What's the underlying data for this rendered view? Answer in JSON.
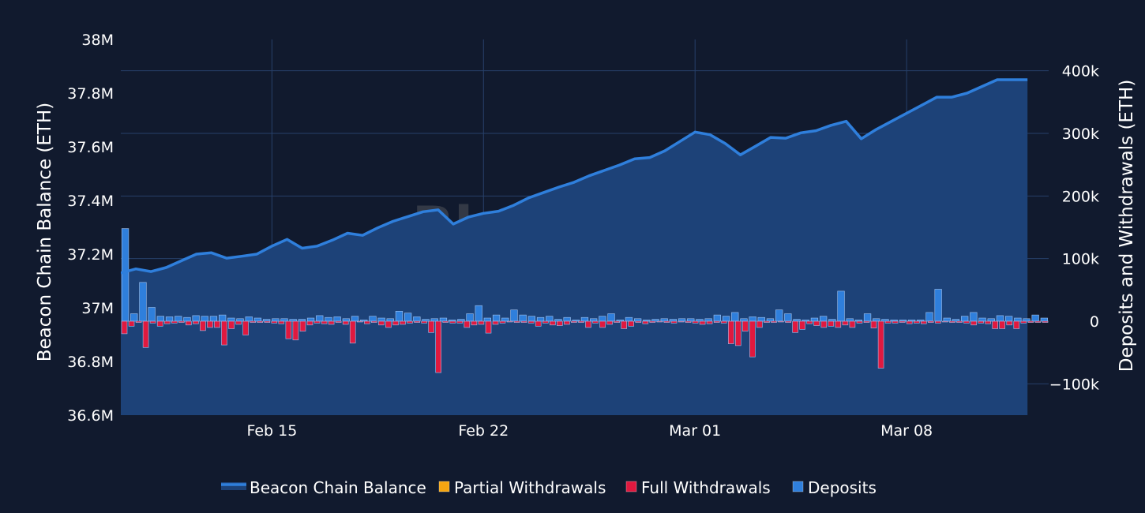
{
  "watermark": "BlockScholes",
  "colors": {
    "background": "#111a2e",
    "area_fill": "#1d4278",
    "line": "#2f7fdc",
    "deposits": "#2f7fdc",
    "full_withdrawals": "#e0193f",
    "partial_withdrawals": "#f5a511",
    "grid": "#27406a"
  },
  "legend": [
    {
      "key": "balance",
      "label": "Beacon Chain Balance",
      "color": "#2f7fdc",
      "icon": "line-swatch-icon"
    },
    {
      "key": "partial",
      "label": "Partial Withdrawals",
      "color": "#f5a511",
      "icon": "square-swatch-icon"
    },
    {
      "key": "full",
      "label": "Full Withdrawals",
      "color": "#e0193f",
      "icon": "square-swatch-icon"
    },
    {
      "key": "deposits",
      "label": "Deposits",
      "color": "#2f7fdc",
      "icon": "square-swatch-icon"
    }
  ],
  "chart_data": {
    "type": "line+bar",
    "x_start": "Feb 10",
    "x_end": "Mar 15",
    "xlabel": "",
    "ylabel_left": "Beacon Chain Balance (ETH)",
    "ylabel_right": "Deposits and Withdrawals (ETH)",
    "y_left_range": [
      36600000,
      38000000
    ],
    "y_left_ticks": [
      36600000,
      36800000,
      37000000,
      37200000,
      37400000,
      37600000,
      37800000,
      38000000
    ],
    "y_left_tick_labels": [
      "36.6M",
      "36.8M",
      "37M",
      "37.2M",
      "37.4M",
      "37.6M",
      "37.8M",
      "38M"
    ],
    "y_right_range": [
      -150000,
      450000
    ],
    "y_right_ticks": [
      -100000,
      0,
      100000,
      200000,
      300000,
      400000
    ],
    "y_right_tick_labels": [
      "−100k",
      "0",
      "100k",
      "200k",
      "300k",
      "400k"
    ],
    "x_tick_positions": [
      5,
      12,
      19,
      26
    ],
    "x_tick_labels": [
      "Feb 15",
      "Feb 22",
      "Mar 01",
      "Mar 08"
    ],
    "series": [
      {
        "name": "Beacon Chain Balance",
        "type": "line",
        "axis": "left",
        "x": [
          0,
          0.5,
          1,
          1.5,
          2,
          2.5,
          3,
          3.5,
          4,
          4.5,
          5,
          5.5,
          6,
          6.5,
          7,
          7.5,
          8,
          8.5,
          9,
          9.5,
          10,
          10.5,
          11,
          11.5,
          12,
          12.5,
          13,
          13.5,
          14,
          14.5,
          15,
          15.5,
          16,
          16.5,
          17,
          17.5,
          18,
          18.5,
          19,
          19.5,
          20,
          20.5,
          21,
          21.5,
          22,
          22.5,
          23,
          23.5,
          24,
          24.5,
          25,
          25.5,
          26,
          26.5,
          27,
          27.5,
          28,
          28.5,
          29,
          29.5,
          30
        ],
        "values": [
          37130000,
          37145000,
          37135000,
          37150000,
          37175000,
          37200000,
          37205000,
          37185000,
          37192000,
          37200000,
          37230000,
          37255000,
          37222000,
          37230000,
          37252000,
          37278000,
          37270000,
          37298000,
          37322000,
          37340000,
          37358000,
          37365000,
          37312000,
          37338000,
          37352000,
          37360000,
          37382000,
          37410000,
          37430000,
          37450000,
          37468000,
          37492000,
          37512000,
          37532000,
          37555000,
          37560000,
          37585000,
          37620000,
          37655000,
          37645000,
          37612000,
          37570000,
          37602000,
          37635000,
          37632000,
          37652000,
          37660000,
          37680000,
          37695000,
          37630000,
          37665000,
          37695000,
          37725000,
          37755000,
          37785000,
          37785000,
          37800000,
          37825000,
          37850000,
          37850000,
          37850000
        ]
      },
      {
        "name": "Deposits",
        "type": "bar",
        "axis": "right",
        "values": [
          148000,
          12000,
          62000,
          22000,
          8000,
          7000,
          8000,
          6000,
          9000,
          8000,
          8000,
          10000,
          5000,
          4000,
          7000,
          5000,
          3000,
          4000,
          4000,
          3000,
          3000,
          5000,
          9000,
          6000,
          7000,
          4000,
          8000,
          2000,
          8000,
          5000,
          4000,
          16000,
          13000,
          7000,
          3000,
          4000,
          5000,
          2000,
          3000,
          12000,
          25000,
          5000,
          10000,
          5000,
          18000,
          10000,
          8000,
          6000,
          8000,
          3000,
          6000,
          2000,
          6000,
          4000,
          8000,
          12000,
          2000,
          6000,
          4000,
          2000,
          3000,
          4000,
          3000,
          4000,
          4000,
          3000,
          4000,
          10000,
          8000,
          14000,
          4000,
          7000,
          6000,
          4000,
          18000,
          12000,
          3000,
          2000,
          5000,
          8000,
          3000,
          48000,
          4000,
          2000,
          12000,
          4000,
          3000,
          2000,
          2000,
          2000,
          2000,
          14000,
          51000,
          5000,
          3000,
          8000,
          14000,
          5000,
          4000,
          9000,
          8000,
          5000,
          4000,
          10000,
          5000
        ],
        "color": "#2f7fdc"
      },
      {
        "name": "Full Withdrawals",
        "type": "bar",
        "axis": "right",
        "values": [
          -20000,
          -8000,
          -2000,
          -42000,
          -3000,
          -8000,
          -4000,
          -3000,
          -2000,
          -6000,
          -4000,
          -15000,
          -10000,
          -10000,
          -38000,
          -12000,
          -5000,
          -22000,
          -2000,
          -2000,
          -2000,
          -3000,
          -4000,
          -28000,
          -30000,
          -16000,
          -6000,
          -3000,
          -4000,
          -5000,
          -2000,
          -5000,
          -35000,
          -1000,
          -4000,
          -2000,
          -6000,
          -10000,
          -6000,
          -5000,
          -3000,
          -2000,
          -3000,
          -18000,
          -82000,
          -2000,
          -3000,
          -3000,
          -10000,
          -6000,
          -5000,
          -19000,
          -5000,
          -3000,
          -1000,
          -2000,
          -2000,
          -3000,
          -8000,
          -3000,
          -6000,
          -7000,
          -5000,
          -2000,
          -2000,
          -10000,
          -3000,
          -10000,
          -5000,
          -2000,
          -12000,
          -8000,
          -2000,
          -4000,
          -2000,
          -1000,
          -2000,
          -3000,
          -1000,
          -2000,
          -3000,
          -5000,
          -4000,
          -2000,
          -3000,
          -36000,
          -39000,
          -16000,
          -57000,
          -10000,
          -2000,
          -2000,
          -1000,
          -2000,
          -18000,
          -13000,
          -4000,
          -7000,
          -10000,
          -8000,
          -10000,
          -6000,
          -10000,
          -3000,
          -2000,
          -11000,
          -75000,
          -3000,
          -3000,
          -2000,
          -4000,
          -3000,
          -4000,
          -2000,
          -3000,
          -1000,
          -2000,
          -2000,
          -3000,
          -6000,
          -3000,
          -4000,
          -12000,
          -12000,
          -6000,
          -12000,
          -3000,
          -2000,
          -2000,
          -2000
        ],
        "color": "#e0193f"
      },
      {
        "name": "Partial Withdrawals",
        "type": "bar",
        "axis": "right",
        "values": [],
        "color": "#f5a511"
      }
    ]
  }
}
